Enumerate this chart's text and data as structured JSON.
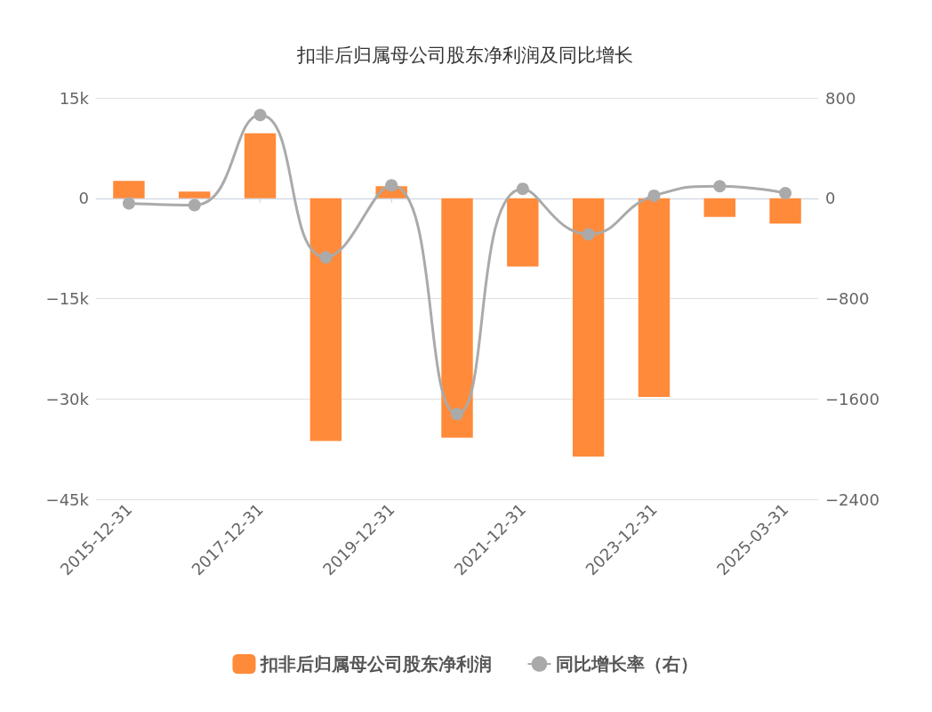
{
  "chart_data": {
    "type": "bar",
    "title": "扣非后归属母公司股东净利润及同比增长",
    "categories": [
      "2015-12-31",
      null,
      "2017-12-31",
      null,
      "2019-12-31",
      null,
      "2021-12-31",
      null,
      "2023-12-31",
      null,
      "2025-03-31"
    ],
    "series": [
      {
        "name": "扣非后归属母公司股东净利润",
        "color": "#ff8a3a",
        "values": [
          2600,
          1000,
          9700,
          -36300,
          1800,
          -35800,
          -10200,
          -38600,
          -29700,
          -2800,
          -3800
        ]
      },
      {
        "name": "同比增长率（右）",
        "type": "line",
        "axis": "y2",
        "color": "#aaaaaa",
        "values": [
          -41,
          -55,
          663,
          -471,
          102,
          -1720,
          75,
          -287,
          20,
          96,
          41
        ]
      }
    ],
    "ylim": [
      -45000,
      15000
    ],
    "yticks": [
      {
        "value": -45000,
        "label": "−45k"
      },
      {
        "value": -30000,
        "label": "−30k"
      },
      {
        "value": -15000,
        "label": "−15k"
      },
      0,
      {
        "value": 15000,
        "label": "15k"
      }
    ],
    "y2lim": [
      -2400,
      800
    ],
    "y2ticks": [
      {
        "value": -2400,
        "label": "−2400"
      },
      {
        "value": -1600,
        "label": "−1600"
      },
      {
        "value": -800,
        "label": "−800"
      },
      0,
      800
    ],
    "grid": "y",
    "legend": "bottom",
    "marker": "circle"
  }
}
